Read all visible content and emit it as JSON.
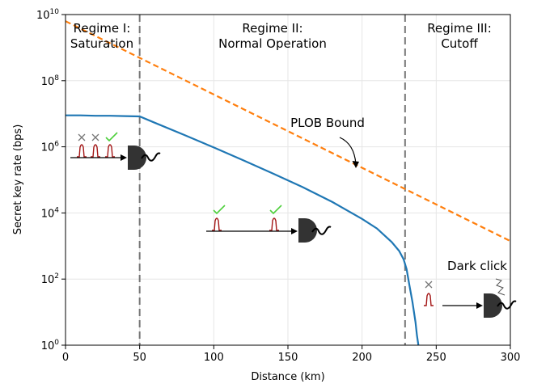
{
  "chart_data": {
    "type": "line",
    "xlabel": "Distance (km)",
    "ylabel": "Secret key rate (bps)",
    "xlim": [
      0,
      300
    ],
    "ylim_log10": [
      0,
      10
    ],
    "yscale": "log",
    "grid": true,
    "x_ticks": [
      0,
      50,
      100,
      150,
      200,
      250,
      300
    ],
    "x_tick_labels": [
      "0",
      "50",
      "100",
      "150",
      "200",
      "250",
      "300"
    ],
    "y_ticks_log10": [
      0,
      2,
      4,
      6,
      8,
      10
    ],
    "y_tick_base": "10",
    "y_tick_exponents": [
      "0",
      "2",
      "4",
      "6",
      "8",
      "10"
    ],
    "series": [
      {
        "name": "PLOB Bound",
        "style": "dashed",
        "color": "#ff7f0e",
        "x": [
          0,
          300
        ],
        "log10_y": [
          9.8,
          3.15
        ]
      },
      {
        "name": "",
        "style": "solid",
        "color": "#1f77b4",
        "x": [
          0,
          10,
          20,
          30,
          40,
          50,
          60,
          80,
          100,
          120,
          140,
          160,
          180,
          200,
          210,
          220,
          225,
          228,
          230,
          232,
          234,
          236,
          237,
          238
        ],
        "log10_y": [
          6.95,
          6.95,
          6.94,
          6.94,
          6.93,
          6.92,
          6.73,
          6.36,
          5.98,
          5.59,
          5.19,
          4.78,
          4.33,
          3.82,
          3.53,
          3.12,
          2.85,
          2.6,
          2.3,
          1.8,
          1.3,
          0.7,
          0.3,
          0.0
        ]
      }
    ],
    "vlines_x": [
      50,
      229
    ],
    "regimes": [
      {
        "line1": "Regime I:",
        "line2": "Saturation"
      },
      {
        "line1": "Regime II:",
        "line2": "Normal Operation"
      },
      {
        "line1": "Regime III:",
        "line2": "Cutoff"
      }
    ],
    "annotations": {
      "plob": "PLOB Bound",
      "dark_click": "Dark click"
    }
  }
}
